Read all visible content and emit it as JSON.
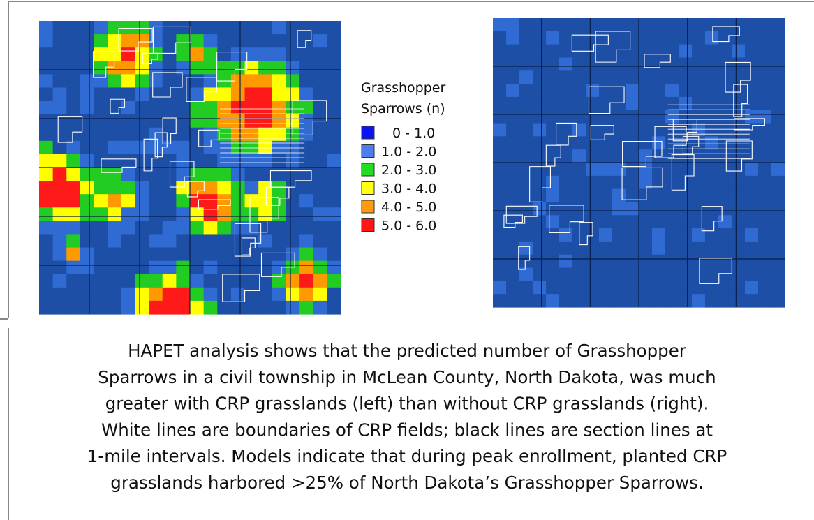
{
  "legend": {
    "title": [
      "Grasshopper",
      "Sparrows (n)"
    ],
    "entries": [
      {
        "label": "0 - 1.0",
        "color": "#0a14f0"
      },
      {
        "label": "1.0 - 2.0",
        "color": "#4a7ff0"
      },
      {
        "label": "2.0 - 3.0",
        "color": "#22dd22"
      },
      {
        "label": "3.0 - 4.0",
        "color": "#ffff11"
      },
      {
        "label": "4.0 - 5.0",
        "color": "#ff9a11"
      },
      {
        "label": "5.0 - 6.0",
        "color": "#ff1515"
      }
    ]
  },
  "caption": [
    "HAPET analysis shows that the predicted number of Grasshopper",
    "Sparrows in a civil township in McLean County, North Dakota, was much",
    "greater with CRP grasslands (left) than without CRP grasslands (right).",
    "White lines are boundaries of CRP fields; black lines are section lines at",
    "1-mile intervals. Models indicate that during peak enrollment, planted CRP",
    "grasslands harbored >25% of North Dakota’s Grasshopper Sparrows."
  ]
}
